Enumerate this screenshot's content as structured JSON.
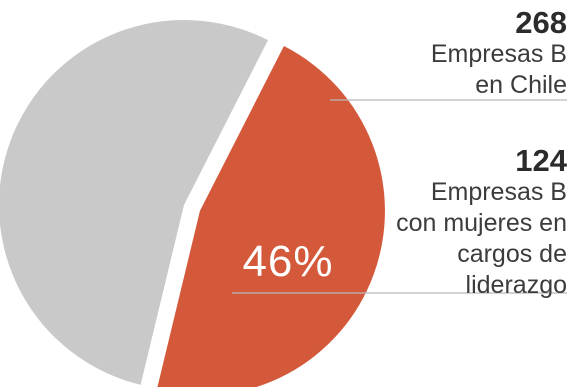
{
  "chart_data": {
    "type": "pie",
    "title": "",
    "slices": [
      {
        "label": "Empresas B en Chile",
        "value": 268,
        "color": "#c9c9c9"
      },
      {
        "label": "Empresas B con mujeres en cargos de liderazgo",
        "value": 124,
        "color": "#d4583a",
        "exploded": true
      }
    ],
    "percent_label": "46%",
    "annotations": [
      {
        "value": "268",
        "text": "Empresas B\nen Chile"
      },
      {
        "value": "124",
        "text": "Empresas B\ncon mujeres en\ncargos de\nliderazgo"
      }
    ]
  }
}
